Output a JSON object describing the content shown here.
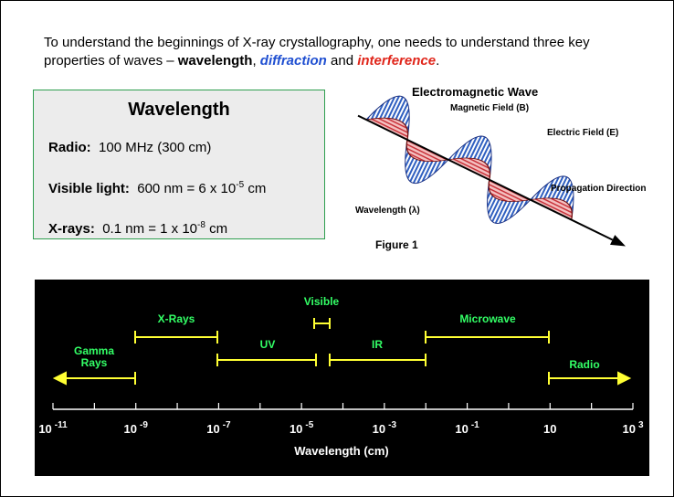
{
  "intro": [
    "To understand the beginnings of X-ray crystallography, one needs to understand three key properties of waves – ",
    "wavelength",
    ", ",
    "diffraction",
    " and ",
    "interference",
    "."
  ],
  "box": {
    "title": "Wavelength",
    "rows": [
      {
        "label": "Radio:",
        "text": "100 MHz (300 cm)"
      },
      {
        "label": "Visible light:",
        "text": "600 nm = 6 x 10",
        "sup": "-5",
        "tail": " cm"
      },
      {
        "label": "X-rays:",
        "text": "0.1 nm =  1 x 10",
        "sup": "-8",
        "tail": " cm"
      }
    ]
  },
  "figure": {
    "title": "Electromagnetic Wave",
    "magnetic": "Magnetic Field (B)",
    "electric": "Electric Field (E)",
    "propagation": "Propagation Direction",
    "wavelength": "Wavelength (λ)",
    "caption": "Figure 1"
  },
  "spectrum": {
    "bands": [
      [
        "Gamma",
        "Rays"
      ],
      "X-Rays",
      "UV",
      "Visible",
      "IR",
      "Microwave",
      "Radio"
    ],
    "ticks": [
      {
        "base": "10",
        "exp": "-11"
      },
      {
        "base": "10",
        "exp": "-9"
      },
      {
        "base": "10",
        "exp": "-7"
      },
      {
        "base": "10",
        "exp": "-5"
      },
      {
        "base": "10",
        "exp": "-3"
      },
      {
        "base": "10",
        "exp": "-1"
      },
      {
        "base": "10"
      },
      {
        "base": "10",
        "exp": "3"
      }
    ],
    "axis_title": "Wavelength (cm)"
  }
}
